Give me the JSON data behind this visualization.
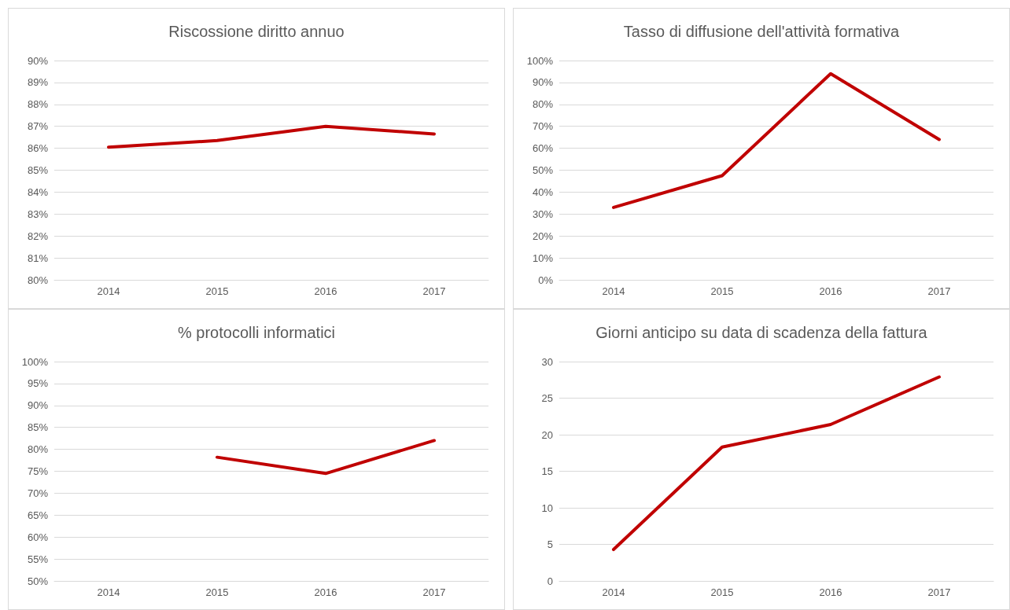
{
  "chart_data": [
    {
      "type": "line",
      "title": "Riscossione diritto annuo",
      "categories": [
        "2014",
        "2015",
        "2016",
        "2017"
      ],
      "series": [
        {
          "color": "#c00000",
          "values": [
            86.05,
            86.35,
            87.0,
            86.65
          ]
        }
      ],
      "ylim": [
        80,
        90
      ],
      "yticks": [
        {
          "value": 80,
          "label": "80%"
        },
        {
          "value": 81,
          "label": "81%"
        },
        {
          "value": 82,
          "label": "82%"
        },
        {
          "value": 83,
          "label": "83%"
        },
        {
          "value": 84,
          "label": "84%"
        },
        {
          "value": 85,
          "label": "85%"
        },
        {
          "value": 86,
          "label": "86%"
        },
        {
          "value": 87,
          "label": "87%"
        },
        {
          "value": 88,
          "label": "88%"
        },
        {
          "value": 89,
          "label": "89%"
        },
        {
          "value": 90,
          "label": "90%"
        }
      ],
      "grid": "y",
      "marker": "none",
      "line_style": "solid"
    },
    {
      "type": "line",
      "title": "Tasso di diffusione dell'attività formativa",
      "categories": [
        "2014",
        "2015",
        "2016",
        "2017"
      ],
      "series": [
        {
          "color": "#c00000",
          "values": [
            33,
            47.5,
            94,
            64
          ]
        }
      ],
      "ylim": [
        0,
        100
      ],
      "yticks": [
        {
          "value": 0,
          "label": "0%"
        },
        {
          "value": 10,
          "label": "10%"
        },
        {
          "value": 20,
          "label": "20%"
        },
        {
          "value": 30,
          "label": "30%"
        },
        {
          "value": 40,
          "label": "40%"
        },
        {
          "value": 50,
          "label": "50%"
        },
        {
          "value": 60,
          "label": "60%"
        },
        {
          "value": 70,
          "label": "70%"
        },
        {
          "value": 80,
          "label": "80%"
        },
        {
          "value": 90,
          "label": "90%"
        },
        {
          "value": 100,
          "label": "100%"
        }
      ],
      "grid": "y",
      "marker": "none",
      "line_style": "solid"
    },
    {
      "type": "line",
      "title": "% protocolli informatici",
      "categories": [
        "2014",
        "2015",
        "2016",
        "2017"
      ],
      "series": [
        {
          "color": "#c00000",
          "values": [
            null,
            78.2,
            74.5,
            82
          ]
        }
      ],
      "ylim": [
        50,
        100
      ],
      "yticks": [
        {
          "value": 50,
          "label": "50%"
        },
        {
          "value": 55,
          "label": "55%"
        },
        {
          "value": 60,
          "label": "60%"
        },
        {
          "value": 65,
          "label": "65%"
        },
        {
          "value": 70,
          "label": "70%"
        },
        {
          "value": 75,
          "label": "75%"
        },
        {
          "value": 80,
          "label": "80%"
        },
        {
          "value": 85,
          "label": "85%"
        },
        {
          "value": 90,
          "label": "90%"
        },
        {
          "value": 95,
          "label": "95%"
        },
        {
          "value": 100,
          "label": "100%"
        }
      ],
      "grid": "y",
      "marker": "none",
      "line_style": "solid"
    },
    {
      "type": "line",
      "title": "Giorni anticipo su data di scadenza della fattura",
      "categories": [
        "2014",
        "2015",
        "2016",
        "2017"
      ],
      "series": [
        {
          "color": "#c00000",
          "values": [
            4.3,
            18.3,
            21.4,
            27.9
          ]
        }
      ],
      "ylim": [
        0,
        30
      ],
      "yticks": [
        0,
        5,
        10,
        15,
        20,
        25,
        30
      ],
      "grid": "y",
      "marker": "none",
      "line_style": "solid"
    }
  ]
}
